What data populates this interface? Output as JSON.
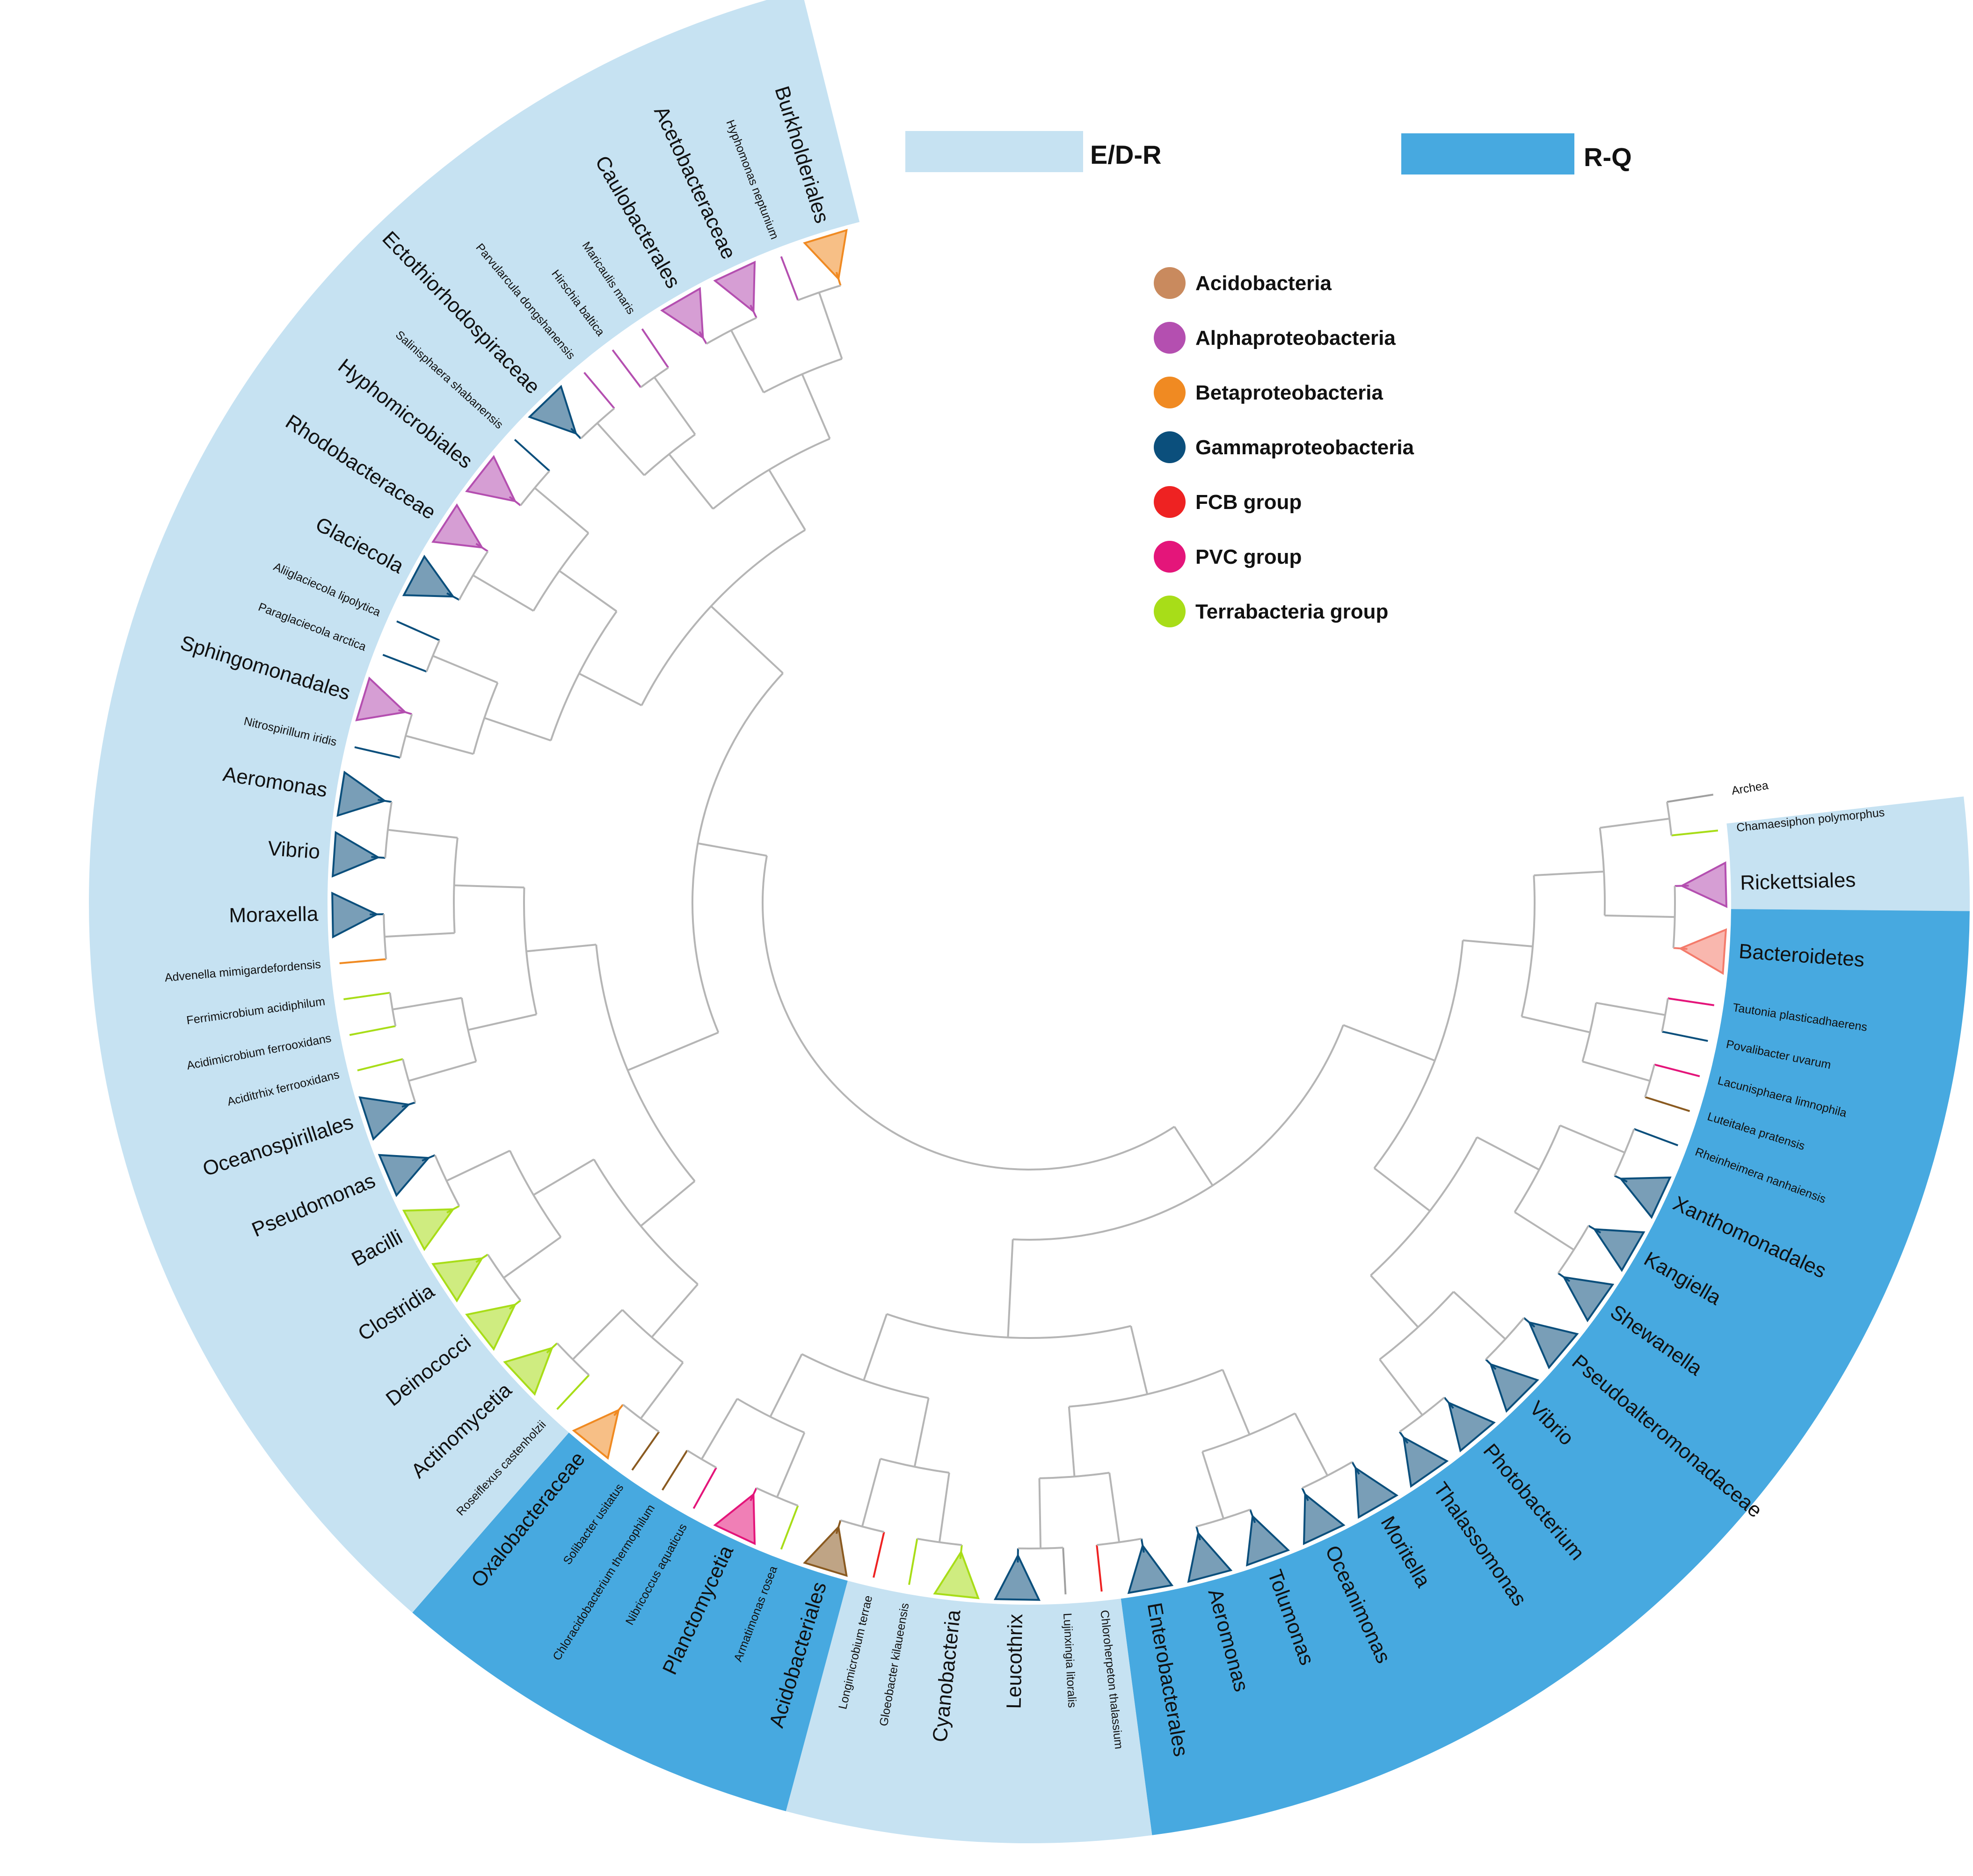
{
  "legend": {
    "regions": [
      {
        "label": "E/D-R",
        "color": "#c6e2f2"
      },
      {
        "label": "R-Q",
        "color": "#47a9e0"
      }
    ],
    "taxa": [
      {
        "label": "Acidobacteria",
        "color": "#c98a5e"
      },
      {
        "label": "Alphaproteobacteria",
        "color": "#b44fb0"
      },
      {
        "label": "Betaproteobacteria",
        "color": "#f08a22"
      },
      {
        "label": "Gammaproteobacteria",
        "color": "#0b4f7c"
      },
      {
        "label": "FCB group",
        "color": "#ee2222"
      },
      {
        "label": "PVC group",
        "color": "#e4157a"
      },
      {
        "label": "Terrabacteria group",
        "color": "#a8dd18"
      }
    ]
  },
  "leaves": [
    {
      "label": "Archea",
      "angle": -9,
      "kind": "species",
      "color": "#a0a0a0"
    },
    {
      "label": "Chamaesiphon polymorphus",
      "angle": -6,
      "kind": "species",
      "color": "#a8dd18"
    },
    {
      "label": "Rickettsiales",
      "angle": -1.5,
      "kind": "clade",
      "color": "#b44fb0"
    },
    {
      "label": "Bacteroidetes",
      "angle": 4,
      "kind": "clade",
      "color": "#f47b6b"
    },
    {
      "label": "Tautonia plasticadhaerens",
      "angle": 8.5,
      "kind": "species",
      "color": "#e4157a"
    },
    {
      "label": "Povalibacter uvarum",
      "angle": 11.5,
      "kind": "species",
      "color": "#0b4f7c"
    },
    {
      "label": "Lacunisphaera limnophila",
      "angle": 14.5,
      "kind": "species",
      "color": "#e4157a"
    },
    {
      "label": "Luteitalea pratensis",
      "angle": 17.5,
      "kind": "species",
      "color": "#8a5a20"
    },
    {
      "label": "Rheinheimera nanhaiensis",
      "angle": 20.5,
      "kind": "species",
      "color": "#0b4f7c"
    },
    {
      "label": "Xanthomonadales",
      "angle": 25,
      "kind": "clade",
      "color": "#0b4f7c"
    },
    {
      "label": "Kangiella",
      "angle": 30,
      "kind": "clade",
      "color": "#0b4f7c"
    },
    {
      "label": "Shewanella",
      "angle": 35,
      "kind": "clade",
      "color": "#0b4f7c"
    },
    {
      "label": "Pseudoalteromonadaceae",
      "angle": 40,
      "kind": "clade",
      "color": "#0b4f7c"
    },
    {
      "label": "Vibrio",
      "angle": 45,
      "kind": "clade",
      "color": "#0b4f7c"
    },
    {
      "label": "Photobacterium",
      "angle": 50,
      "kind": "clade",
      "color": "#0b4f7c"
    },
    {
      "label": "Thalassomonas",
      "angle": 55,
      "kind": "clade",
      "color": "#0b4f7c"
    },
    {
      "label": "Moritella",
      "angle": 60,
      "kind": "clade",
      "color": "#0b4f7c"
    },
    {
      "label": "Oceanimonas",
      "angle": 65,
      "kind": "clade",
      "color": "#0b4f7c"
    },
    {
      "label": "Tolumonas",
      "angle": 70,
      "kind": "clade",
      "color": "#0b4f7c"
    },
    {
      "label": "Aeromonas",
      "angle": 75,
      "kind": "clade",
      "color": "#0b4f7c"
    },
    {
      "label": "Enterobacterales",
      "angle": 80,
      "kind": "clade",
      "color": "#0b4f7c"
    },
    {
      "label": "Chloroherpeton thalassium",
      "angle": 84,
      "kind": "species",
      "color": "#ee2222"
    },
    {
      "label": "Lujinxingia litoralis",
      "angle": 87,
      "kind": "species",
      "color": "#a0a0a0"
    },
    {
      "label": "Leucothrix",
      "angle": 91,
      "kind": "clade",
      "color": "#0b4f7c"
    },
    {
      "label": "Cyanobacteria",
      "angle": 96,
      "kind": "clade",
      "color": "#a8dd18"
    },
    {
      "label": "Gloeobacter kilaueensis",
      "angle": 100,
      "kind": "species",
      "color": "#a8dd18"
    },
    {
      "label": "Longimicrobium terrae",
      "angle": 103,
      "kind": "species",
      "color": "#ee2222"
    },
    {
      "label": "Acidobacteriales",
      "angle": 107,
      "kind": "clade",
      "color": "#8a5a20"
    },
    {
      "label": "Armatimonas rosea",
      "angle": 111,
      "kind": "species",
      "color": "#a8dd18"
    },
    {
      "label": "Planctomycetia",
      "angle": 115,
      "kind": "clade",
      "color": "#e4157a"
    },
    {
      "label": "Nibricoccus aquaticus",
      "angle": 119,
      "kind": "species",
      "color": "#e4157a"
    },
    {
      "label": "Chloracidobacterium thermophilum",
      "angle": 122,
      "kind": "species",
      "color": "#8a5a20"
    },
    {
      "label": "Solibacter usitatus",
      "angle": 125,
      "kind": "species",
      "color": "#8a5a20"
    },
    {
      "label": "Oxalobacteraceae",
      "angle": 129,
      "kind": "clade",
      "color": "#f08a22"
    },
    {
      "label": "Roseiflexus castenholzii",
      "angle": 133,
      "kind": "species",
      "color": "#a8dd18"
    },
    {
      "label": "Actinomycetia",
      "angle": 137,
      "kind": "clade",
      "color": "#a8dd18"
    },
    {
      "label": "Deinococci",
      "angle": 142,
      "kind": "clade",
      "color": "#a8dd18"
    },
    {
      "label": "Clostridia",
      "angle": 147,
      "kind": "clade",
      "color": "#a8dd18"
    },
    {
      "label": "Bacilli",
      "angle": 152,
      "kind": "clade",
      "color": "#a8dd18"
    },
    {
      "label": "Pseudomonas",
      "angle": 157,
      "kind": "clade",
      "color": "#0b4f7c"
    },
    {
      "label": "Oceanospirillales",
      "angle": 162,
      "kind": "clade",
      "color": "#0b4f7c"
    },
    {
      "label": "Aciditrhix ferrooxidans",
      "angle": 166,
      "kind": "species",
      "color": "#a8dd18"
    },
    {
      "label": "Acidimicrobium ferrooxidans",
      "angle": 169,
      "kind": "species",
      "color": "#a8dd18"
    },
    {
      "label": "Ferrimicrobium acidiphilum",
      "angle": 172,
      "kind": "species",
      "color": "#a8dd18"
    },
    {
      "label": "Advenella mimigardefordensis",
      "angle": 175,
      "kind": "species",
      "color": "#f08a22"
    },
    {
      "label": "Moraxella",
      "angle": 179,
      "kind": "clade",
      "color": "#0b4f7c"
    },
    {
      "label": "Vibrio",
      "angle": 184,
      "kind": "clade",
      "color": "#0b4f7c"
    },
    {
      "label": "Aeromonas",
      "angle": 189,
      "kind": "clade",
      "color": "#0b4f7c"
    },
    {
      "label": "Nitrospirillum iridis",
      "angle": 193,
      "kind": "species",
      "color": "#0b4f7c"
    },
    {
      "label": "Sphingomonadales",
      "angle": 197,
      "kind": "clade",
      "color": "#b44fb0"
    },
    {
      "label": "Paraglaciecola arctica",
      "angle": 201,
      "kind": "species",
      "color": "#0b4f7c"
    },
    {
      "label": "Aliiglaciecola lipolytica",
      "angle": 204,
      "kind": "species",
      "color": "#0b4f7c"
    },
    {
      "label": "Glaciecola",
      "angle": 208,
      "kind": "clade",
      "color": "#0b4f7c"
    },
    {
      "label": "Rhodobacteraceae",
      "angle": 213,
      "kind": "clade",
      "color": "#b44fb0"
    },
    {
      "label": "Hyphomicrobiales",
      "angle": 218,
      "kind": "clade",
      "color": "#b44fb0"
    },
    {
      "label": "Salinisphaera shabanensis",
      "angle": 222,
      "kind": "species",
      "color": "#0b4f7c"
    },
    {
      "label": "Ectothiorhodospiraceae",
      "angle": 226,
      "kind": "clade",
      "color": "#0b4f7c"
    },
    {
      "label": "Parvularcula dongshanensis",
      "angle": 230,
      "kind": "species",
      "color": "#b44fb0"
    },
    {
      "label": "Hirschia baltica",
      "angle": 233,
      "kind": "species",
      "color": "#b44fb0"
    },
    {
      "label": "Maricaulis maris",
      "angle": 236,
      "kind": "species",
      "color": "#b44fb0"
    },
    {
      "label": "Caulobacterales",
      "angle": 240,
      "kind": "clade",
      "color": "#b44fb0"
    },
    {
      "label": "Acetobacteraceae",
      "angle": 245,
      "kind": "clade",
      "color": "#b44fb0"
    },
    {
      "label": "Hyphomonas neptunium",
      "angle": 249,
      "kind": "species",
      "color": "#b44fb0"
    },
    {
      "label": "Burkholderiales",
      "angle": 253,
      "kind": "clade",
      "color": "#f08a22"
    }
  ],
  "bands": [
    {
      "from": -6.5,
      "to": 0.5,
      "region": "E/D-R"
    },
    {
      "from": 0.5,
      "to": 82.5,
      "region": "R-Q"
    },
    {
      "from": 82.5,
      "to": 105,
      "region": "E/D-R"
    },
    {
      "from": 105,
      "to": 131,
      "region": "R-Q"
    },
    {
      "from": 131,
      "to": 256,
      "region": "E/D-R"
    }
  ]
}
